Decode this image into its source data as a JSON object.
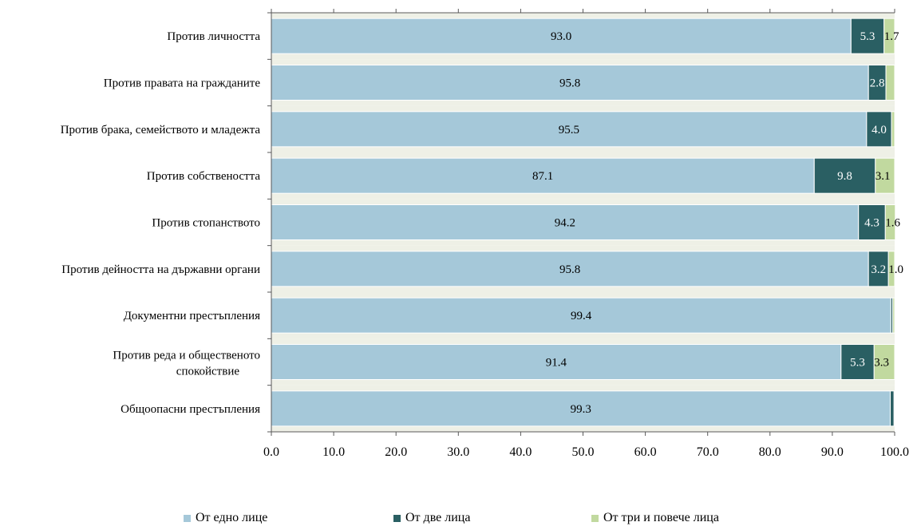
{
  "chart_data": {
    "type": "bar",
    "orientation": "horizontal",
    "stacked": true,
    "categories": [
      "Против личността",
      "Против правата на гражданите",
      "Против брака, семейството и младежта",
      "Против собствеността",
      "Против стопанството",
      "Против дейността на държавни органи",
      "Документни престъпления",
      "Против реда и общественото спокойствие",
      "Общоопасни престъпления"
    ],
    "series": [
      {
        "name": "От едно лице",
        "color": "#a5c8d9",
        "values": [
          93.0,
          95.8,
          95.5,
          87.1,
          94.2,
          95.8,
          99.4,
          91.4,
          99.3
        ],
        "labels": [
          "93.0",
          "95.8",
          "95.5",
          "87.1",
          "94.2",
          "95.8",
          "99.4",
          "91.4",
          "99.3"
        ]
      },
      {
        "name": "От две лица",
        "color": "#2a5f63",
        "values": [
          5.3,
          2.8,
          4.0,
          9.8,
          4.3,
          3.2,
          0.3,
          5.3,
          0.6
        ],
        "labels": [
          "5.3",
          "2.8",
          "4.0",
          "9.8",
          "4.3",
          "3.2",
          "",
          "5.3",
          ""
        ]
      },
      {
        "name": "От три и повече лица",
        "color": "#c1d99f",
        "values": [
          1.7,
          1.4,
          0.5,
          3.1,
          1.6,
          1.0,
          0.3,
          3.3,
          0.1
        ],
        "labels": [
          "1.7",
          "",
          "",
          "3.1",
          "1.6",
          "1.0",
          "",
          "3.3",
          ""
        ]
      }
    ],
    "xlim": [
      0,
      100
    ],
    "xticks": [
      "0.0",
      "10.0",
      "20.0",
      "30.0",
      "40.0",
      "50.0",
      "60.0",
      "70.0",
      "80.0",
      "90.0",
      "100.0"
    ],
    "row_band_color": "#eef0e6",
    "grid": false,
    "legend_position": "bottom"
  }
}
